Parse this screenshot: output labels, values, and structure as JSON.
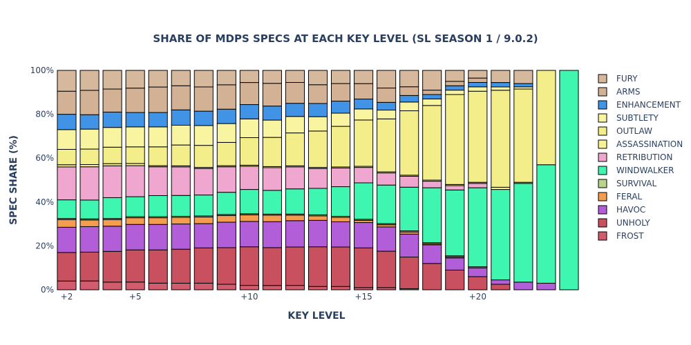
{
  "chart_data": {
    "type": "bar",
    "stacked": true,
    "title": "SHARE OF MDPS SPECS AT EACH KEY LEVEL (SL SEASON 1 / 9.0.2)",
    "xlabel": "KEY LEVEL",
    "ylabel": "SPEC SHARE (%)",
    "ylim": [
      0,
      100
    ],
    "y_ticks": [
      "0%",
      "20%",
      "40%",
      "60%",
      "80%",
      "100%"
    ],
    "x_tick_labels": [
      {
        "key": 2,
        "label": "+2"
      },
      {
        "key": 5,
        "label": "+5"
      },
      {
        "key": 10,
        "label": "+10"
      },
      {
        "key": 15,
        "label": "+15"
      },
      {
        "key": 20,
        "label": "+20"
      }
    ],
    "grid": false,
    "legend_position": "right",
    "categories": [
      2,
      3,
      4,
      5,
      6,
      7,
      8,
      9,
      10,
      11,
      12,
      13,
      14,
      15,
      16,
      17,
      18,
      19,
      20,
      21,
      22,
      23,
      24
    ],
    "series": [
      {
        "name": "FROST",
        "color": "#d05c6e",
        "values": [
          4,
          4,
          3.5,
          3.5,
          3,
          3,
          3,
          2.5,
          2,
          2,
          2,
          1.5,
          1.5,
          1,
          1,
          0.5,
          0,
          0,
          0,
          0,
          0,
          0,
          0
        ]
      },
      {
        "name": "UNHOLY",
        "color": "#c9505f",
        "values": [
          13,
          13,
          14,
          14.5,
          15,
          15.5,
          16,
          16.5,
          17.5,
          17.5,
          17.5,
          18,
          18,
          18,
          16.5,
          14.5,
          12,
          9,
          6,
          2.5,
          0,
          0,
          0
        ]
      },
      {
        "name": "HAVOC",
        "color": "#b15ed8",
        "values": [
          11.5,
          11.5,
          11.5,
          11.5,
          11.5,
          11.5,
          11,
          11.5,
          11.5,
          12,
          12,
          12,
          11.5,
          11.5,
          11,
          10.5,
          8.5,
          5.5,
          4,
          2,
          3.5,
          3,
          0
        ]
      },
      {
        "name": "FERAL",
        "color": "#f59d4f",
        "values": [
          3.5,
          3,
          3,
          3,
          3,
          3,
          3,
          3,
          3,
          3,
          2.5,
          2,
          2,
          1,
          1,
          1,
          0.5,
          0.5,
          0.5,
          0,
          0,
          0,
          0
        ]
      },
      {
        "name": "SURVIVAL",
        "color": "#b7d48a",
        "values": [
          0.5,
          0.5,
          0.5,
          0.5,
          0.5,
          0.5,
          0.5,
          0.5,
          0.5,
          0.5,
          0.5,
          0.5,
          0.5,
          0.5,
          0.5,
          0.5,
          0.5,
          0.5,
          0,
          0,
          0,
          0,
          0
        ]
      },
      {
        "name": "WINDWALKER",
        "color": "#3ff6b0",
        "values": [
          8.5,
          8.5,
          9.5,
          9,
          9.5,
          9.5,
          9.5,
          10,
          11,
          11,
          11.5,
          12,
          13.5,
          16.5,
          17.5,
          20,
          25,
          30,
          36,
          41,
          45,
          54,
          100
        ]
      },
      {
        "name": "RETRIBUTION",
        "color": "#f0a7cf",
        "values": [
          15,
          15,
          14.5,
          14,
          13,
          13,
          12,
          11.5,
          10.5,
          10.5,
          10,
          9,
          8.5,
          7,
          5.5,
          5,
          3,
          2,
          2,
          0,
          0,
          0,
          0
        ]
      },
      {
        "name": "ASSASSINATION",
        "color": "#f7f394",
        "values": [
          1,
          1,
          1,
          1,
          0.5,
          0.5,
          0.5,
          0.5,
          0.5,
          0.5,
          0.5,
          0.5,
          0.5,
          0.5,
          0.5,
          0.5,
          0.5,
          0.5,
          0.5,
          1,
          0.5,
          0,
          0
        ]
      },
      {
        "name": "OUTLAW",
        "color": "#f3ee8a",
        "values": [
          7,
          7,
          7.5,
          7.5,
          8.5,
          9.5,
          10,
          10.5,
          12.5,
          13.5,
          15,
          16.5,
          18.5,
          21,
          24,
          29.5,
          34,
          41,
          41.5,
          44,
          42.5,
          43,
          0
        ]
      },
      {
        "name": "SUBTLETY",
        "color": "#f8f4a0",
        "values": [
          9,
          9,
          9,
          9,
          9,
          9,
          9,
          8.5,
          8.5,
          8,
          7.5,
          6.5,
          6,
          5,
          4,
          4,
          3,
          2,
          2,
          1.5,
          1,
          0,
          0
        ]
      },
      {
        "name": "ENHANCEMENT",
        "color": "#4193e6",
        "values": [
          7,
          6.5,
          7,
          6.5,
          6.5,
          7,
          6.5,
          6.5,
          6.5,
          6.5,
          6,
          6,
          5.5,
          4.5,
          3.5,
          3,
          2,
          2,
          2,
          2,
          1.5,
          0,
          0
        ]
      },
      {
        "name": "ARMS",
        "color": "#d3b194",
        "values": [
          10.5,
          11,
          10.5,
          11,
          11.5,
          11,
          11,
          11,
          10,
          10.5,
          9.5,
          8.5,
          8,
          7,
          6.5,
          4,
          2,
          2,
          2,
          0,
          0,
          0,
          0
        ]
      },
      {
        "name": "FURY",
        "color": "#d6b89c",
        "values": [
          9.5,
          9,
          8.5,
          8,
          7.5,
          7,
          7.5,
          6.5,
          5.5,
          6,
          5.5,
          6.5,
          6,
          6,
          8,
          7.5,
          9,
          5,
          3.5,
          5.5,
          6,
          0,
          0
        ]
      }
    ]
  }
}
